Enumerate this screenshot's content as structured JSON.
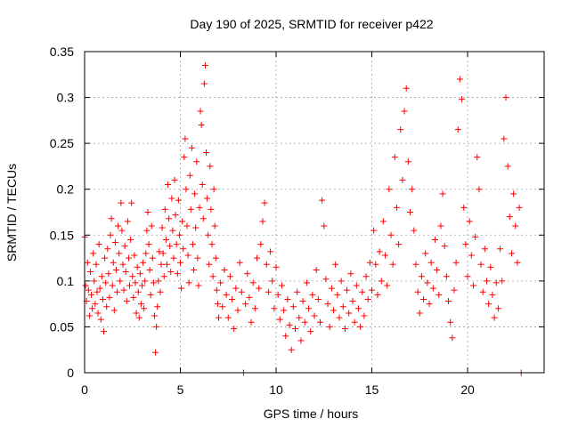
{
  "chart_data": {
    "type": "scatter",
    "title": "Day 190 of 2025, SRMTID for receiver p422",
    "xlabel": "GPS time / hours",
    "ylabel": "SRMTID / TECUs",
    "xlim": [
      0,
      24
    ],
    "ylim": [
      0,
      0.35
    ],
    "x_ticks": [
      0,
      5,
      10,
      15,
      20
    ],
    "x_tick_labels": [
      "0",
      "5",
      "10",
      "15",
      "20"
    ],
    "y_ticks": [
      0,
      0.05,
      0.1,
      0.15,
      0.2,
      0.25,
      0.3,
      0.35
    ],
    "y_tick_labels": [
      "0",
      "0.05",
      "0.1",
      "0.15",
      "0.2",
      "0.25",
      "0.3",
      "0.35"
    ],
    "grid": true,
    "marker": "+",
    "series_color": "#ff0000",
    "series": [
      {
        "name": "SRMTID",
        "points": [
          [
            0.0,
            0.148
          ],
          [
            0.05,
            0.095
          ],
          [
            0.1,
            0.078
          ],
          [
            0.15,
            0.12
          ],
          [
            0.2,
            0.09
          ],
          [
            0.25,
            0.062
          ],
          [
            0.3,
            0.11
          ],
          [
            0.35,
            0.085
          ],
          [
            0.4,
            0.07
          ],
          [
            0.45,
            0.13
          ],
          [
            0.5,
            0.1
          ],
          [
            0.55,
            0.075
          ],
          [
            0.6,
            0.118
          ],
          [
            0.65,
            0.088
          ],
          [
            0.7,
            0.065
          ],
          [
            0.75,
            0.14
          ],
          [
            0.8,
            0.092
          ],
          [
            0.85,
            0.058
          ],
          [
            0.9,
            0.105
          ],
          [
            0.95,
            0.08
          ],
          [
            1.0,
            0.045
          ],
          [
            1.05,
            0.125
          ],
          [
            1.1,
            0.098
          ],
          [
            1.15,
            0.072
          ],
          [
            1.2,
            0.135
          ],
          [
            1.25,
            0.108
          ],
          [
            1.3,
            0.082
          ],
          [
            1.35,
            0.15
          ],
          [
            1.4,
            0.168
          ],
          [
            1.45,
            0.095
          ],
          [
            1.5,
            0.12
          ],
          [
            1.55,
            0.068
          ],
          [
            1.6,
            0.142
          ],
          [
            1.65,
            0.112
          ],
          [
            1.7,
            0.088
          ],
          [
            1.75,
            0.16
          ],
          [
            1.8,
            0.13
          ],
          [
            1.85,
            0.1
          ],
          [
            1.9,
            0.185
          ],
          [
            1.95,
            0.155
          ],
          [
            2.0,
            0.118
          ],
          [
            2.05,
            0.09
          ],
          [
            2.1,
            0.138
          ],
          [
            2.15,
            0.11
          ],
          [
            2.2,
            0.078
          ],
          [
            2.25,
            0.165
          ],
          [
            2.3,
            0.125
          ],
          [
            2.35,
            0.095
          ],
          [
            2.4,
            0.145
          ],
          [
            2.45,
            0.185
          ],
          [
            2.5,
            0.105
          ],
          [
            2.55,
            0.082
          ],
          [
            2.6,
            0.128
          ],
          [
            2.65,
            0.098
          ],
          [
            2.7,
            0.065
          ],
          [
            2.75,
            0.115
          ],
          [
            2.8,
            0.088
          ],
          [
            2.85,
            0.06
          ],
          [
            2.9,
            0.108
          ],
          [
            2.95,
            0.075
          ],
          [
            3.0,
            0.095
          ],
          [
            3.05,
            0.12
          ],
          [
            3.1,
            0.07
          ],
          [
            3.15,
            0.1
          ],
          [
            3.2,
            0.13
          ],
          [
            3.25,
            0.155
          ],
          [
            3.3,
            0.175
          ],
          [
            3.35,
            0.14
          ],
          [
            3.4,
            0.112
          ],
          [
            3.45,
            0.085
          ],
          [
            3.5,
            0.16
          ],
          [
            3.55,
            0.125
          ],
          [
            3.6,
            0.098
          ],
          [
            3.65,
            0.062
          ],
          [
            3.7,
            0.022
          ],
          [
            3.75,
            0.05
          ],
          [
            3.8,
            0.072
          ],
          [
            3.85,
            0.1
          ],
          [
            3.9,
            0.132
          ],
          [
            3.95,
            0.088
          ],
          [
            4.0,
            0.118
          ],
          [
            4.05,
            0.158
          ],
          [
            4.1,
            0.13
          ],
          [
            4.15,
            0.105
          ],
          [
            4.2,
            0.178
          ],
          [
            4.25,
            0.145
          ],
          [
            4.3,
            0.118
          ],
          [
            4.35,
            0.205
          ],
          [
            4.4,
            0.168
          ],
          [
            4.45,
            0.138
          ],
          [
            4.5,
            0.11
          ],
          [
            4.55,
            0.19
          ],
          [
            4.6,
            0.155
          ],
          [
            4.65,
            0.125
          ],
          [
            4.7,
            0.21
          ],
          [
            4.75,
            0.172
          ],
          [
            4.8,
            0.14
          ],
          [
            4.85,
            0.108
          ],
          [
            4.9,
            0.188
          ],
          [
            4.95,
            0.15
          ],
          [
            5.0,
            0.12
          ],
          [
            5.05,
            0.092
          ],
          [
            5.1,
            0.165
          ],
          [
            5.15,
            0.135
          ],
          [
            5.2,
            0.235
          ],
          [
            5.25,
            0.255
          ],
          [
            5.3,
            0.2
          ],
          [
            5.35,
            0.16
          ],
          [
            5.4,
            0.128
          ],
          [
            5.45,
            0.098
          ],
          [
            5.5,
            0.215
          ],
          [
            5.55,
            0.178
          ],
          [
            5.6,
            0.245
          ],
          [
            5.65,
            0.14
          ],
          [
            5.7,
            0.112
          ],
          [
            5.75,
            0.195
          ],
          [
            5.8,
            0.158
          ],
          [
            5.85,
            0.23
          ],
          [
            5.9,
            0.125
          ],
          [
            5.95,
            0.095
          ],
          [
            6.0,
            0.18
          ],
          [
            6.05,
            0.285
          ],
          [
            6.1,
            0.27
          ],
          [
            6.15,
            0.205
          ],
          [
            6.2,
            0.168
          ],
          [
            6.25,
            0.315
          ],
          [
            6.3,
            0.335
          ],
          [
            6.35,
            0.24
          ],
          [
            6.4,
            0.19
          ],
          [
            6.45,
            0.15
          ],
          [
            6.5,
            0.118
          ],
          [
            6.55,
            0.225
          ],
          [
            6.6,
            0.178
          ],
          [
            6.65,
            0.14
          ],
          [
            6.7,
            0.105
          ],
          [
            6.75,
            0.2
          ],
          [
            6.8,
            0.16
          ],
          [
            6.85,
            0.125
          ],
          [
            6.9,
            0.09
          ],
          [
            6.95,
            0.075
          ],
          [
            7.0,
            0.06
          ],
          [
            7.1,
            0.098
          ],
          [
            7.2,
            0.072
          ],
          [
            7.3,
            0.112
          ],
          [
            7.4,
            0.085
          ],
          [
            7.5,
            0.06
          ],
          [
            7.6,
            0.105
          ],
          [
            7.7,
            0.08
          ],
          [
            7.8,
            0.048
          ],
          [
            7.9,
            0.092
          ],
          [
            8.0,
            0.068
          ],
          [
            8.1,
            0.12
          ],
          [
            8.2,
            0.088
          ],
          [
            8.3,
            0.0
          ],
          [
            8.4,
            0.075
          ],
          [
            8.5,
            0.108
          ],
          [
            8.6,
            0.082
          ],
          [
            8.7,
            0.055
          ],
          [
            8.8,
            0.098
          ],
          [
            8.9,
            0.07
          ],
          [
            9.0,
            0.125
          ],
          [
            9.1,
            0.092
          ],
          [
            9.2,
            0.14
          ],
          [
            9.3,
            0.165
          ],
          [
            9.4,
            0.185
          ],
          [
            9.5,
            0.118
          ],
          [
            9.6,
            0.088
          ],
          [
            9.7,
            0.132
          ],
          [
            9.8,
            0.1
          ],
          [
            9.9,
            0.07
          ],
          [
            10.0,
            0.115
          ],
          [
            10.1,
            0.085
          ],
          [
            10.2,
            0.058
          ],
          [
            10.3,
            0.095
          ],
          [
            10.4,
            0.068
          ],
          [
            10.5,
            0.04
          ],
          [
            10.6,
            0.08
          ],
          [
            10.7,
            0.052
          ],
          [
            10.8,
            0.025
          ],
          [
            10.9,
            0.072
          ],
          [
            11.0,
            0.048
          ],
          [
            11.1,
            0.088
          ],
          [
            11.2,
            0.06
          ],
          [
            11.3,
            0.035
          ],
          [
            11.4,
            0.078
          ],
          [
            11.5,
            0.055
          ],
          [
            11.6,
            0.098
          ],
          [
            11.7,
            0.07
          ],
          [
            11.8,
            0.045
          ],
          [
            11.9,
            0.085
          ],
          [
            12.0,
            0.062
          ],
          [
            12.1,
            0.112
          ],
          [
            12.2,
            0.08
          ],
          [
            12.3,
            0.055
          ],
          [
            12.4,
            0.188
          ],
          [
            12.5,
            0.16
          ],
          [
            12.6,
            0.102
          ],
          [
            12.7,
            0.075
          ],
          [
            12.8,
            0.05
          ],
          [
            12.9,
            0.092
          ],
          [
            13.0,
            0.068
          ],
          [
            13.1,
            0.118
          ],
          [
            13.2,
            0.085
          ],
          [
            13.3,
            0.06
          ],
          [
            13.4,
            0.1
          ],
          [
            13.5,
            0.072
          ],
          [
            13.6,
            0.048
          ],
          [
            13.7,
            0.09
          ],
          [
            13.8,
            0.065
          ],
          [
            13.9,
            0.108
          ],
          [
            14.0,
            0.078
          ],
          [
            14.1,
            0.055
          ],
          [
            14.2,
            0.095
          ],
          [
            14.3,
            0.07
          ],
          [
            14.4,
            0.05
          ],
          [
            14.5,
            0.088
          ],
          [
            14.6,
            0.062
          ],
          [
            14.7,
            0.105
          ],
          [
            14.8,
            0.08
          ],
          [
            14.9,
            0.12
          ],
          [
            15.0,
            0.09
          ],
          [
            15.1,
            0.155
          ],
          [
            15.2,
            0.118
          ],
          [
            15.3,
            0.085
          ],
          [
            15.4,
            0.132
          ],
          [
            15.5,
            0.1
          ],
          [
            15.6,
            0.165
          ],
          [
            15.7,
            0.128
          ],
          [
            15.8,
            0.095
          ],
          [
            15.9,
            0.2
          ],
          [
            16.0,
            0.15
          ],
          [
            16.1,
            0.118
          ],
          [
            16.2,
            0.235
          ],
          [
            16.3,
            0.18
          ],
          [
            16.4,
            0.14
          ],
          [
            16.5,
            0.265
          ],
          [
            16.6,
            0.21
          ],
          [
            16.7,
            0.285
          ],
          [
            16.8,
            0.31
          ],
          [
            16.9,
            0.23
          ],
          [
            17.0,
            0.175
          ],
          [
            17.1,
            0.2
          ],
          [
            17.2,
            0.155
          ],
          [
            17.3,
            0.118
          ],
          [
            17.4,
            0.088
          ],
          [
            17.5,
            0.065
          ],
          [
            17.6,
            0.105
          ],
          [
            17.7,
            0.08
          ],
          [
            17.8,
            0.13
          ],
          [
            17.9,
            0.098
          ],
          [
            18.0,
            0.075
          ],
          [
            18.1,
            0.12
          ],
          [
            18.2,
            0.092
          ],
          [
            18.3,
            0.145
          ],
          [
            18.4,
            0.112
          ],
          [
            18.5,
            0.085
          ],
          [
            18.6,
            0.16
          ],
          [
            18.7,
            0.195
          ],
          [
            18.8,
            0.138
          ],
          [
            18.9,
            0.105
          ],
          [
            19.0,
            0.078
          ],
          [
            19.1,
            0.055
          ],
          [
            19.2,
            0.038
          ],
          [
            19.3,
            0.09
          ],
          [
            19.4,
            0.12
          ],
          [
            19.5,
            0.265
          ],
          [
            19.6,
            0.32
          ],
          [
            19.7,
            0.298
          ],
          [
            19.8,
            0.18
          ],
          [
            19.9,
            0.14
          ],
          [
            20.0,
            0.105
          ],
          [
            20.1,
            0.165
          ],
          [
            20.2,
            0.128
          ],
          [
            20.3,
            0.095
          ],
          [
            20.4,
            0.148
          ],
          [
            20.5,
            0.235
          ],
          [
            20.6,
            0.2
          ],
          [
            20.7,
            0.118
          ],
          [
            20.8,
            0.088
          ],
          [
            20.9,
            0.135
          ],
          [
            21.0,
            0.1
          ],
          [
            21.1,
            0.075
          ],
          [
            21.2,
            0.115
          ],
          [
            21.3,
            0.085
          ],
          [
            21.4,
            0.06
          ],
          [
            21.5,
            0.098
          ],
          [
            21.6,
            0.07
          ],
          [
            21.7,
            0.135
          ],
          [
            21.8,
            0.1
          ],
          [
            21.9,
            0.255
          ],
          [
            22.0,
            0.3
          ],
          [
            22.1,
            0.225
          ],
          [
            22.2,
            0.17
          ],
          [
            22.3,
            0.13
          ],
          [
            22.4,
            0.195
          ],
          [
            22.5,
            0.16
          ],
          [
            22.6,
            0.12
          ],
          [
            22.7,
            0.18
          ],
          [
            22.8,
            0.0
          ]
        ]
      }
    ]
  }
}
